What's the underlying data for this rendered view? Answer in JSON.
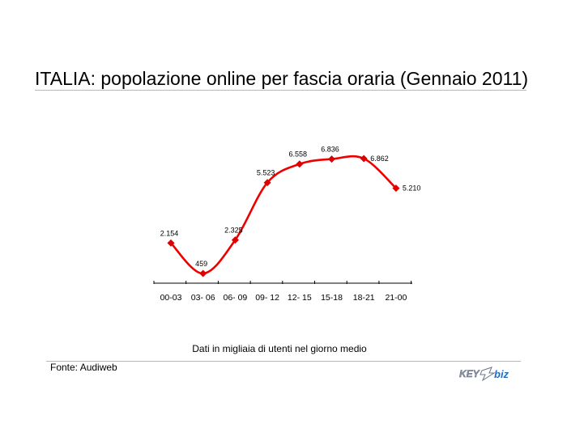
{
  "page": {
    "title": "ITALIA: popolazione online per fascia oraria (Gennaio 2011)",
    "note": "Dati in migliaia di utenti nel giorno medio",
    "source": "Fonte: Audiweb",
    "logo_text": "KEY4biz"
  },
  "colors": {
    "series": "#ee0000",
    "marker": "#dd0000",
    "axis": "#000000",
    "rule": "#b8b8b8"
  },
  "chart_data": {
    "type": "line",
    "title": "",
    "xlabel": "",
    "ylabel": "",
    "grid": false,
    "categories": [
      "00-03",
      "03- 06",
      "06- 09",
      "09- 12",
      "12- 15",
      "15-18",
      "18-21",
      "21-00"
    ],
    "series": [
      {
        "values": [
          2154,
          459,
          2325,
          5523,
          6558,
          6836,
          6862,
          5210
        ],
        "labels": [
          "2.154",
          "459",
          "2.325",
          "5.523",
          "6.558",
          "6.836",
          "6.862",
          "5.210"
        ]
      }
    ]
  }
}
